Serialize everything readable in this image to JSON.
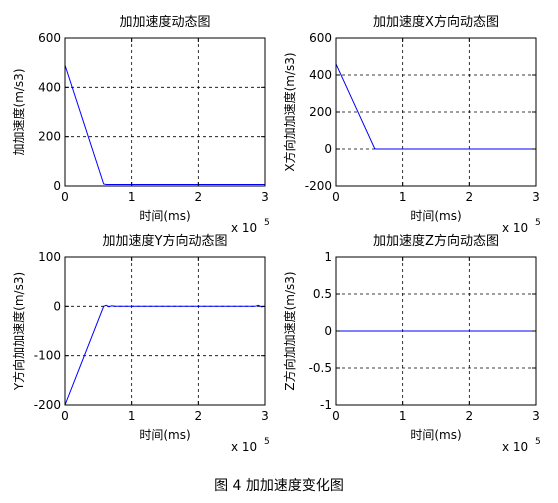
{
  "caption": "图 4  加加速度变化图",
  "chart_data": [
    {
      "type": "line",
      "title": "加加速度动态图",
      "xlabel": "时间(ms)",
      "ylabel": "加加速度(m/s3)",
      "x_exponent": "x 10",
      "x_exponent_power": "5",
      "xlim": [
        0,
        3
      ],
      "ylim": [
        0,
        600
      ],
      "xticks": [
        "0",
        "1",
        "2",
        "3"
      ],
      "yticks": [
        "0",
        "200",
        "400",
        "600"
      ],
      "xtick_values": [
        0,
        1,
        2,
        3
      ],
      "ytick_values": [
        0,
        200,
        400,
        600
      ],
      "grid": true,
      "color": "#0000ff",
      "x": [
        0,
        0.58,
        0.62,
        3.0
      ],
      "y": [
        490,
        8,
        6,
        6
      ]
    },
    {
      "type": "line",
      "title": "加加速度X方向动态图",
      "xlabel": "时间(ms)",
      "ylabel": "X方向加加速度(m/s3)",
      "x_exponent": "x 10",
      "x_exponent_power": "5",
      "xlim": [
        0,
        3
      ],
      "ylim": [
        -200,
        600
      ],
      "xticks": [
        "0",
        "1",
        "2",
        "3"
      ],
      "yticks": [
        "-200",
        "0",
        "200",
        "400",
        "600"
      ],
      "xtick_values": [
        0,
        1,
        2,
        3
      ],
      "ytick_values": [
        -200,
        0,
        200,
        400,
        600
      ],
      "grid": true,
      "color": "#0000ff",
      "x": [
        0,
        0.58,
        0.6,
        3.0
      ],
      "y": [
        460,
        2,
        0,
        0
      ]
    },
    {
      "type": "line",
      "title": "加加速度Y方向动态图",
      "xlabel": "时间(ms)",
      "ylabel": "Y方向加加速度(m/s3)",
      "x_exponent": "x 10",
      "x_exponent_power": "5",
      "xlim": [
        0,
        3
      ],
      "ylim": [
        -200,
        100
      ],
      "xticks": [
        "0",
        "1",
        "2",
        "3"
      ],
      "yticks": [
        "-200",
        "-100",
        "0",
        "100"
      ],
      "xtick_values": [
        0,
        1,
        2,
        3
      ],
      "ytick_values": [
        -200,
        -100,
        0,
        100
      ],
      "grid": true,
      "color": "#0000ff",
      "x": [
        0,
        0.58,
        0.62,
        0.66,
        0.7,
        0.75,
        2.85,
        2.9,
        2.95,
        3.0
      ],
      "y": [
        -200,
        0,
        2,
        -1,
        1,
        0,
        0,
        2,
        -1,
        0
      ]
    },
    {
      "type": "line",
      "title": "加加速度Z方向动态图",
      "xlabel": "时间(ms)",
      "ylabel": "Z方向加加速度(m/s3)",
      "x_exponent": "x 10",
      "x_exponent_power": "5",
      "xlim": [
        0,
        3
      ],
      "ylim": [
        -1,
        1
      ],
      "xticks": [
        "0",
        "1",
        "2",
        "3"
      ],
      "yticks": [
        "-1",
        "-0.5",
        "0",
        "0.5",
        "1"
      ],
      "xtick_values": [
        0,
        1,
        2,
        3
      ],
      "ytick_values": [
        -1,
        -0.5,
        0,
        0.5,
        1
      ],
      "grid": true,
      "color": "#0000ff",
      "x": [
        0,
        3.0
      ],
      "y": [
        0,
        0
      ]
    }
  ]
}
